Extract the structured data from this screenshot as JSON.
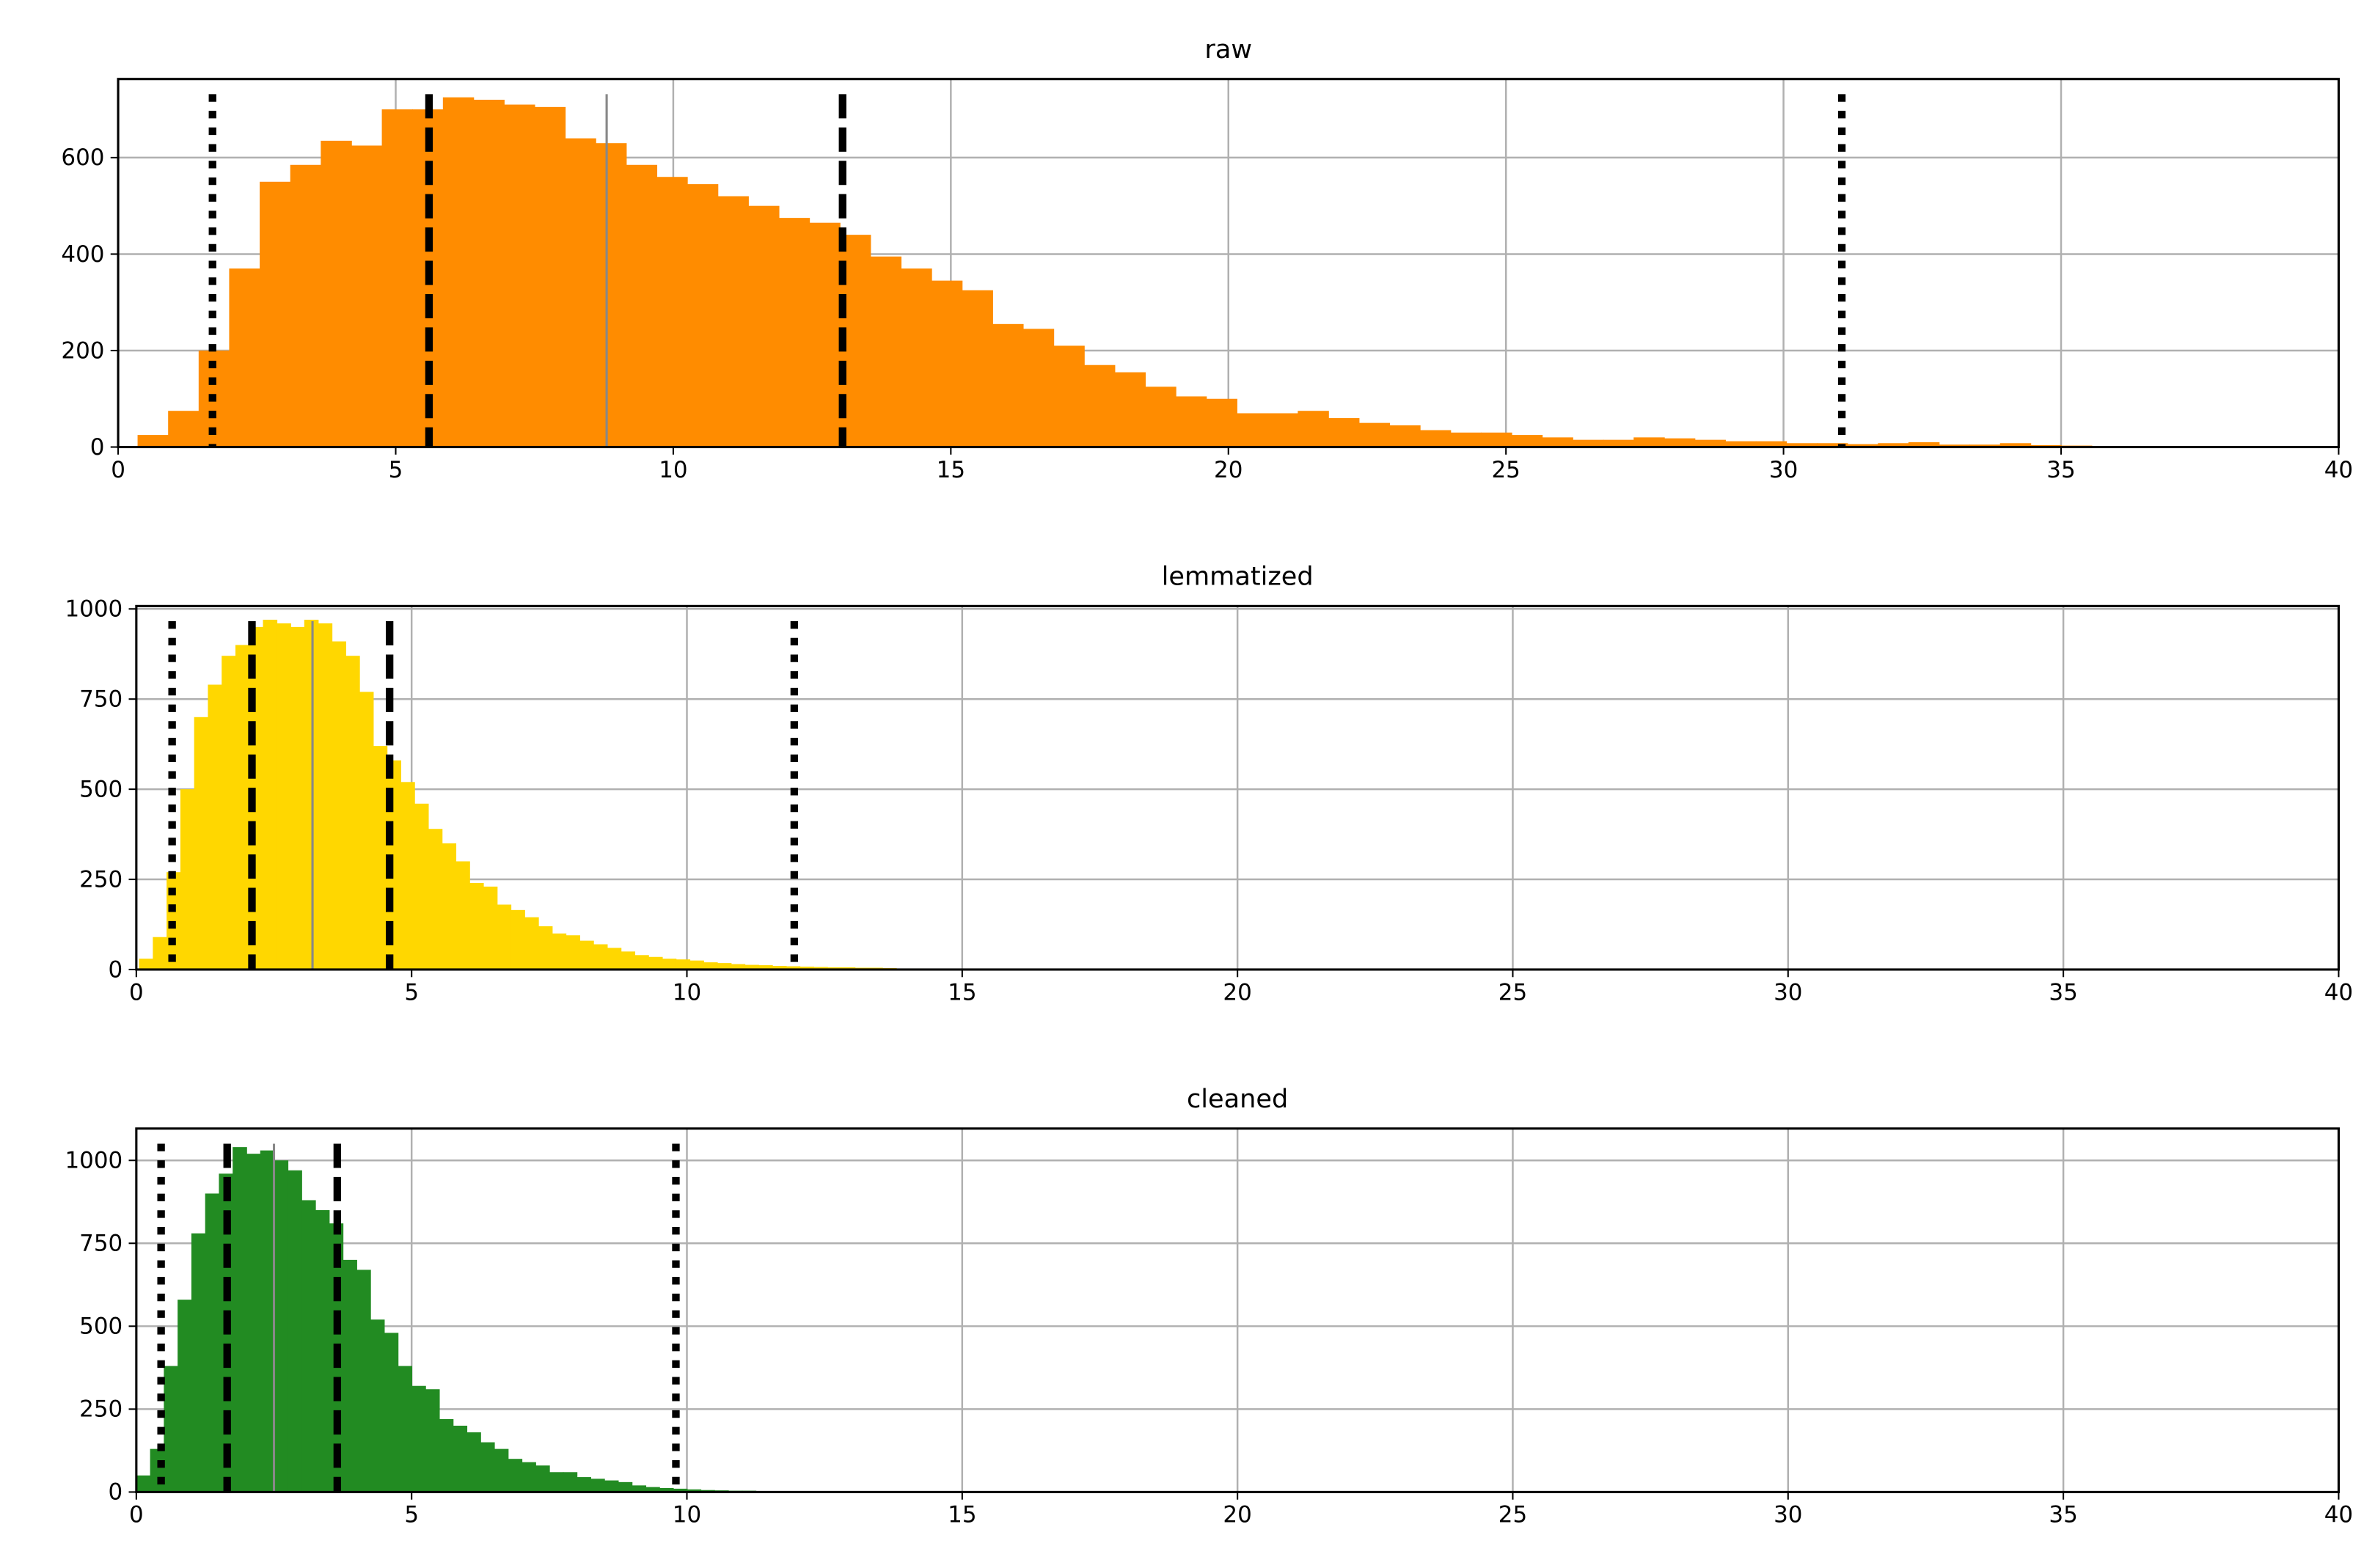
{
  "chart_data": [
    {
      "type": "histogram",
      "title": "raw",
      "color": "#ff8c00",
      "grid": true,
      "bins": [
        0.35,
        0.9,
        1.45,
        2.0,
        2.55,
        3.1,
        3.65,
        4.2,
        4.75,
        5.3,
        5.85,
        6.4,
        6.95,
        7.5,
        8.05,
        8.6,
        9.15,
        9.7,
        10.25,
        10.8,
        11.35,
        11.9,
        12.45,
        13.0,
        13.55,
        14.1,
        14.65,
        15.2,
        15.75,
        16.3,
        16.85,
        17.4,
        17.95,
        18.5,
        19.05,
        19.6,
        20.15,
        20.7,
        21.25,
        21.8,
        22.35,
        22.9,
        23.45,
        24.0,
        24.55,
        25.1,
        25.65,
        26.2,
        26.75,
        27.3,
        27.85,
        28.4,
        28.95,
        29.5,
        30.05,
        30.6,
        31.15,
        31.7,
        32.25,
        32.8,
        33.35,
        33.9,
        34.45,
        35.0,
        35.55,
        36.1,
        36.65
      ],
      "counts": [
        25,
        75,
        200,
        370,
        550,
        585,
        635,
        625,
        700,
        700,
        725,
        720,
        710,
        705,
        640,
        630,
        585,
        560,
        545,
        520,
        500,
        475,
        465,
        440,
        395,
        370,
        345,
        325,
        255,
        245,
        210,
        170,
        155,
        125,
        105,
        100,
        70,
        70,
        75,
        60,
        50,
        45,
        35,
        30,
        30,
        25,
        20,
        15,
        15,
        20,
        18,
        15,
        12,
        12,
        8,
        8,
        6,
        8,
        10,
        5,
        5,
        8,
        4,
        3,
        2,
        1
      ],
      "lines": [
        {
          "x": 1.7,
          "style": "dotted"
        },
        {
          "x": 5.6,
          "style": "dashed"
        },
        {
          "x": 8.8,
          "style": "solid"
        },
        {
          "x": 13.05,
          "style": "dashed"
        },
        {
          "x": 31.05,
          "style": "dotted"
        }
      ],
      "xlim": [
        0,
        40
      ],
      "xticks": [
        0,
        5,
        10,
        15,
        20,
        25,
        30,
        35,
        40
      ],
      "ylim": [
        0,
        763
      ],
      "yticks": [
        0,
        200,
        400,
        600
      ]
    },
    {
      "type": "histogram",
      "title": "lemmatized",
      "color": "#ffd700",
      "grid": true,
      "bins": [
        0.05,
        0.3,
        0.55,
        0.8,
        1.05,
        1.3,
        1.55,
        1.8,
        2.05,
        2.3,
        2.55,
        2.8,
        3.05,
        3.3,
        3.55,
        3.8,
        4.05,
        4.3,
        4.55,
        4.8,
        5.05,
        5.3,
        5.55,
        5.8,
        6.05,
        6.3,
        6.55,
        6.8,
        7.05,
        7.3,
        7.55,
        7.8,
        8.05,
        8.3,
        8.55,
        8.8,
        9.05,
        9.3,
        9.55,
        9.8,
        10.05,
        10.3,
        10.55,
        10.8,
        11.05,
        11.3,
        11.55,
        11.8,
        12.05,
        12.3,
        12.55,
        12.8,
        13.05,
        13.3,
        13.55,
        13.8,
        14.05,
        14.3,
        14.55,
        14.8,
        15.05,
        15.3,
        15.55
      ],
      "counts": [
        30,
        90,
        270,
        500,
        700,
        790,
        870,
        900,
        950,
        970,
        960,
        950,
        970,
        960,
        910,
        870,
        770,
        620,
        580,
        520,
        460,
        390,
        350,
        300,
        240,
        230,
        180,
        165,
        145,
        120,
        100,
        95,
        80,
        70,
        60,
        50,
        40,
        35,
        30,
        28,
        25,
        20,
        18,
        15,
        13,
        12,
        10,
        9,
        8,
        7,
        6,
        6,
        5,
        5,
        4,
        3,
        3,
        2,
        2,
        2,
        1,
        1
      ],
      "lines": [
        {
          "x": 0.65,
          "style": "dotted"
        },
        {
          "x": 2.1,
          "style": "dashed"
        },
        {
          "x": 3.2,
          "style": "solid"
        },
        {
          "x": 4.6,
          "style": "dashed"
        },
        {
          "x": 11.95,
          "style": "dotted"
        }
      ],
      "xlim": [
        0,
        40
      ],
      "xticks": [
        0,
        5,
        10,
        15,
        20,
        25,
        30,
        35,
        40
      ],
      "ylim": [
        0,
        1008
      ],
      "yticks": [
        0,
        250,
        500,
        750,
        1000
      ]
    },
    {
      "type": "histogram",
      "title": "cleaned",
      "color": "#228b22",
      "grid": true,
      "bins": [
        0,
        0.25,
        0.5,
        0.75,
        1,
        1.25,
        1.5,
        1.75,
        2,
        2.25,
        2.5,
        2.75,
        3,
        3.25,
        3.5,
        3.75,
        4,
        4.25,
        4.5,
        4.75,
        5,
        5.25,
        5.5,
        5.75,
        6,
        6.25,
        6.5,
        6.75,
        7,
        7.25,
        7.5,
        7.75,
        8,
        8.25,
        8.5,
        8.75,
        9,
        9.25,
        9.5,
        9.75,
        10,
        10.25,
        10.5,
        10.75,
        11,
        11.25,
        11.5,
        11.75,
        12,
        12.25,
        12.5,
        12.75,
        13,
        13.25,
        13.5,
        13.75,
        14
      ],
      "counts": [
        50,
        130,
        380,
        580,
        780,
        900,
        960,
        1040,
        1020,
        1030,
        1000,
        970,
        880,
        850,
        810,
        700,
        670,
        520,
        480,
        380,
        320,
        310,
        220,
        200,
        180,
        150,
        130,
        100,
        90,
        80,
        60,
        60,
        45,
        40,
        35,
        30,
        20,
        15,
        12,
        10,
        8,
        6,
        5,
        4,
        4,
        3,
        3,
        2,
        2,
        2,
        1,
        1,
        1,
        1,
        1,
        1
      ],
      "lines": [
        {
          "x": 0.45,
          "style": "dotted"
        },
        {
          "x": 1.65,
          "style": "dashed"
        },
        {
          "x": 2.5,
          "style": "solid"
        },
        {
          "x": 3.65,
          "style": "dashed"
        },
        {
          "x": 9.8,
          "style": "dotted"
        }
      ],
      "xlim": [
        0,
        40
      ],
      "xticks": [
        0,
        5,
        10,
        15,
        20,
        25,
        30,
        35,
        40
      ],
      "ylim": [
        0,
        1096
      ],
      "yticks": [
        0,
        250,
        500,
        750,
        1000
      ]
    }
  ]
}
